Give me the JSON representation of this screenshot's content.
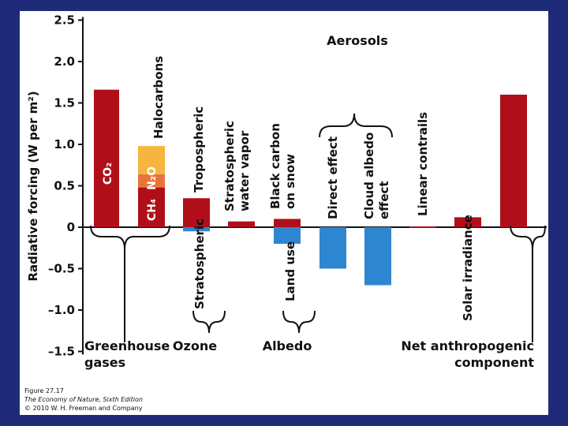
{
  "chart_data": {
    "type": "bar",
    "ylabel": "Radiative forcing (W per m²)",
    "ylim": [
      -1.5,
      2.5
    ],
    "yticks": [
      "2.5",
      "2.0",
      "1.5",
      "1.0",
      "0.5",
      "0",
      "–0.5",
      "–1.0",
      "–1.5"
    ],
    "ytick_values": [
      2.5,
      2.0,
      1.5,
      1.0,
      0.5,
      0,
      -0.5,
      -1.0,
      -1.5
    ],
    "colors": {
      "positive": "#b00f1a",
      "negative": "#2f86d0",
      "n2o": "#e8743b",
      "halocarbons": "#f5b53f"
    },
    "bars": [
      {
        "label": "CO₂",
        "value": 1.66
      },
      {
        "label": "Halocarbons",
        "stack": [
          {
            "label": "CH₄",
            "value": 0.48
          },
          {
            "label": "N₂O",
            "value": 0.16
          },
          {
            "label": "",
            "value": 0.34
          }
        ]
      },
      {
        "label": "Tropospheric",
        "value": 0.35
      },
      {
        "label": "Stratospheric",
        "value": -0.05
      },
      {
        "label": "Stratospheric water vapor",
        "value": 0.07
      },
      {
        "label": "Black carbon on snow",
        "value": 0.1
      },
      {
        "label": "Land use",
        "value": -0.2
      },
      {
        "label": "Direct effect",
        "value": -0.5
      },
      {
        "label": "Cloud albedo effect",
        "value": -0.7
      },
      {
        "label": "Linear contrails",
        "value": 0.01
      },
      {
        "label": "Solar irradiance",
        "value": 0.12
      },
      {
        "label": "Net anthropogenic component",
        "value": 1.6
      }
    ],
    "groups": {
      "greenhouse": "Greenhouse gases",
      "ozone": "Ozone",
      "albedo": "Albedo",
      "aerosols": "Aerosols",
      "net": "Net anthropogenic component"
    }
  },
  "credit": {
    "figure": "Figure 27.17",
    "source": "The Economy of Nature, Sixth Edition",
    "copyright": "© 2010 W. H. Freeman and Company"
  }
}
